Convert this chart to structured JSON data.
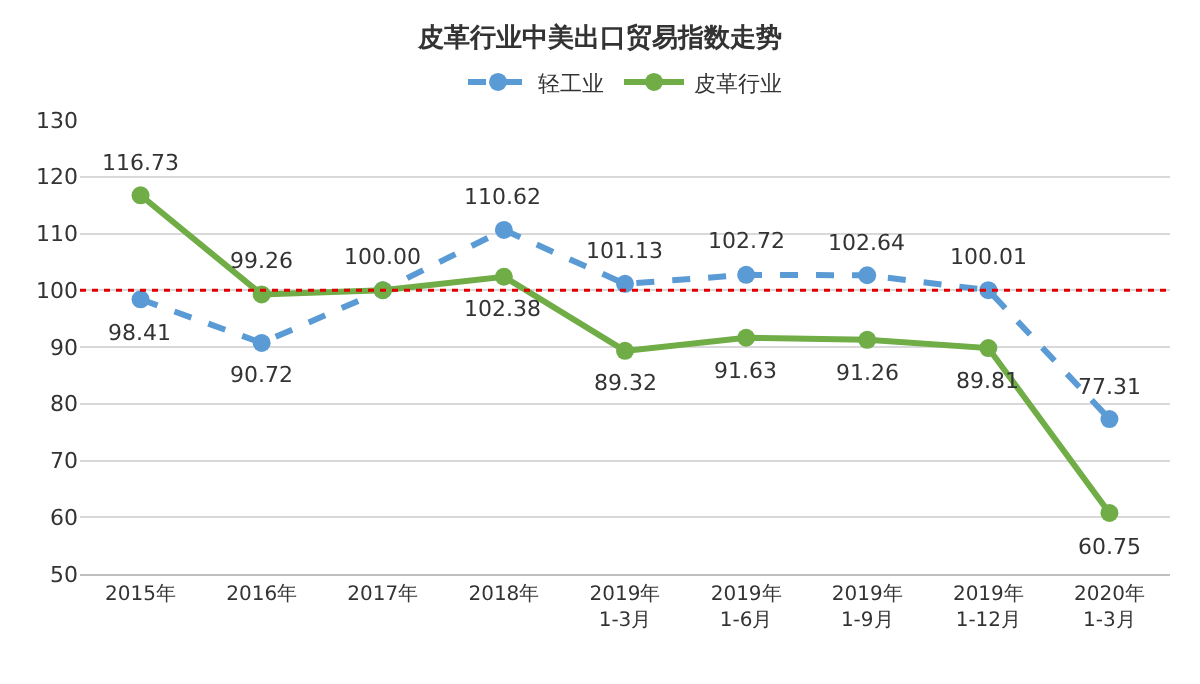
{
  "chart_data": {
    "type": "line",
    "title": "皮革行业中美出口贸易指数走势",
    "categories": [
      "2015年",
      "2016年",
      "2017年",
      "2018年",
      "2019年\n1-3月",
      "2019年\n1-6月",
      "2019年\n1-9月",
      "2019年\n1-12月",
      "2020年\n1-3月"
    ],
    "series": [
      {
        "name": "轻工业",
        "color": "#5b9bd5",
        "line_style": "dashed",
        "values": [
          98.41,
          90.72,
          100.0,
          110.62,
          101.13,
          102.72,
          102.64,
          100.01,
          77.31
        ],
        "value_labels": [
          "98.41",
          "90.72",
          "100.00",
          "110.62",
          "101.13",
          "102.72",
          "102.64",
          "100.01",
          "77.31"
        ]
      },
      {
        "name": "皮革行业",
        "color": "#70ad47",
        "line_style": "solid",
        "values": [
          116.73,
          99.26,
          100.0,
          102.38,
          89.32,
          91.63,
          91.26,
          89.81,
          60.75
        ],
        "value_labels": [
          "116.73",
          "99.26",
          null,
          "102.38",
          "89.32",
          "91.63",
          "91.26",
          "89.81",
          "60.75"
        ]
      }
    ],
    "ylim": [
      50,
      130
    ],
    "yticks": [
      50,
      60,
      70,
      80,
      90,
      100,
      110,
      120,
      130
    ],
    "ref_lines": [
      {
        "axis": "y",
        "value": 100,
        "color": "#e00000",
        "line_style": "dotted"
      }
    ],
    "grid": "y",
    "legend": "top",
    "marker": "circle"
  }
}
